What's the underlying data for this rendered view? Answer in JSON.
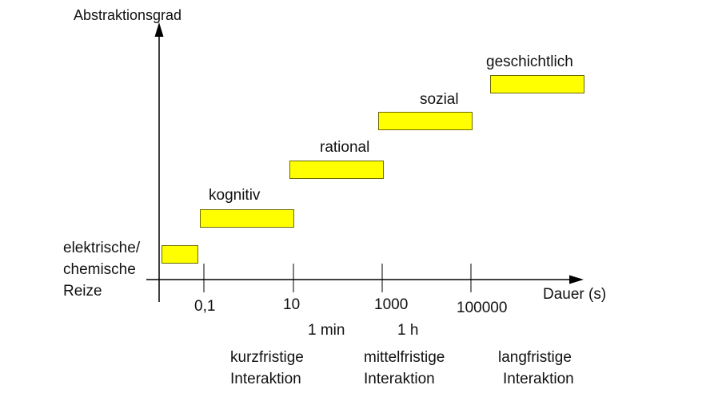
{
  "axes": {
    "y_title": "Abstraktionsgrad",
    "x_title": "Dauer (s)"
  },
  "x_ticks": [
    "0,1",
    "10",
    "1000",
    "100000"
  ],
  "time_marks": [
    "1 min",
    "1 h"
  ],
  "levels": [
    {
      "id": "reize",
      "label_lines": [
        "elektrische/",
        "chemische",
        "Reize"
      ]
    },
    {
      "id": "kognitiv",
      "label": "kognitiv"
    },
    {
      "id": "rational",
      "label": "rational"
    },
    {
      "id": "sozial",
      "label": "sozial"
    },
    {
      "id": "geschichtlich",
      "label": "geschichtlich"
    }
  ],
  "interactions": [
    {
      "line1": "kurzfristige",
      "line2": "Interaktion"
    },
    {
      "line1": "mittelfristige",
      "line2": "Interaktion"
    },
    {
      "line1": "langfristige",
      "line2": "Interaktion"
    }
  ],
  "colors": {
    "bar_fill": "#ffff00",
    "bar_border": "#6b6b00",
    "axis": "#000000"
  }
}
